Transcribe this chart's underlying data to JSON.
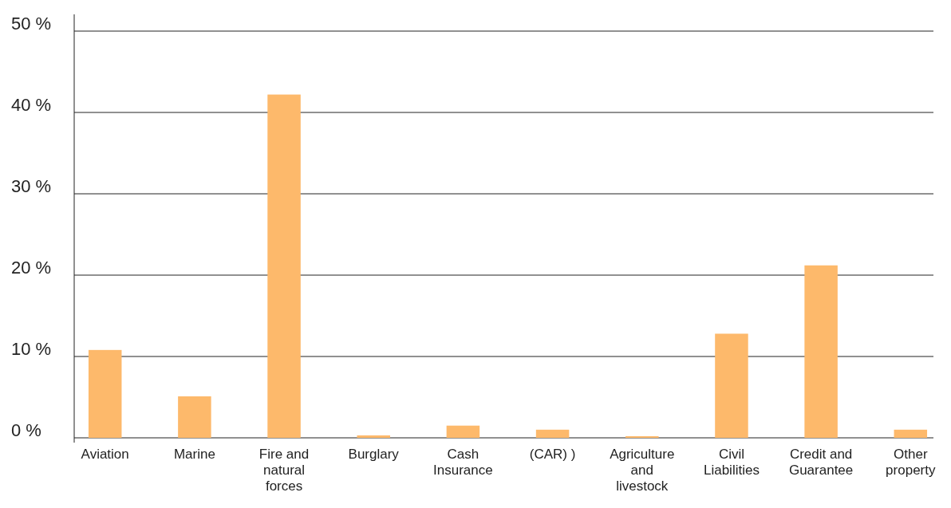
{
  "chart_data": {
    "type": "bar",
    "categories": [
      "Aviation",
      "Marine",
      "Fire and natural forces",
      "Burglary",
      "Cash Insurance",
      "(CAR) )",
      "Agriculture and livestock",
      "Civil Liabilities",
      "Credit and Guarantee",
      "Other property"
    ],
    "values": [
      10.8,
      5.1,
      42.2,
      0.3,
      1.5,
      1.0,
      0.2,
      12.8,
      21.2,
      1.0
    ],
    "color": "#fdb96b",
    "ylim": [
      0,
      50
    ],
    "yticks": [
      {
        "value": 0,
        "label": "0 %"
      },
      {
        "value": 10,
        "label": "10 %"
      },
      {
        "value": 20,
        "label": "20 %"
      },
      {
        "value": 30,
        "label": "30 %"
      },
      {
        "value": 40,
        "label": "40 %"
      },
      {
        "value": 50,
        "label": "50 %"
      }
    ],
    "grid": "y"
  }
}
